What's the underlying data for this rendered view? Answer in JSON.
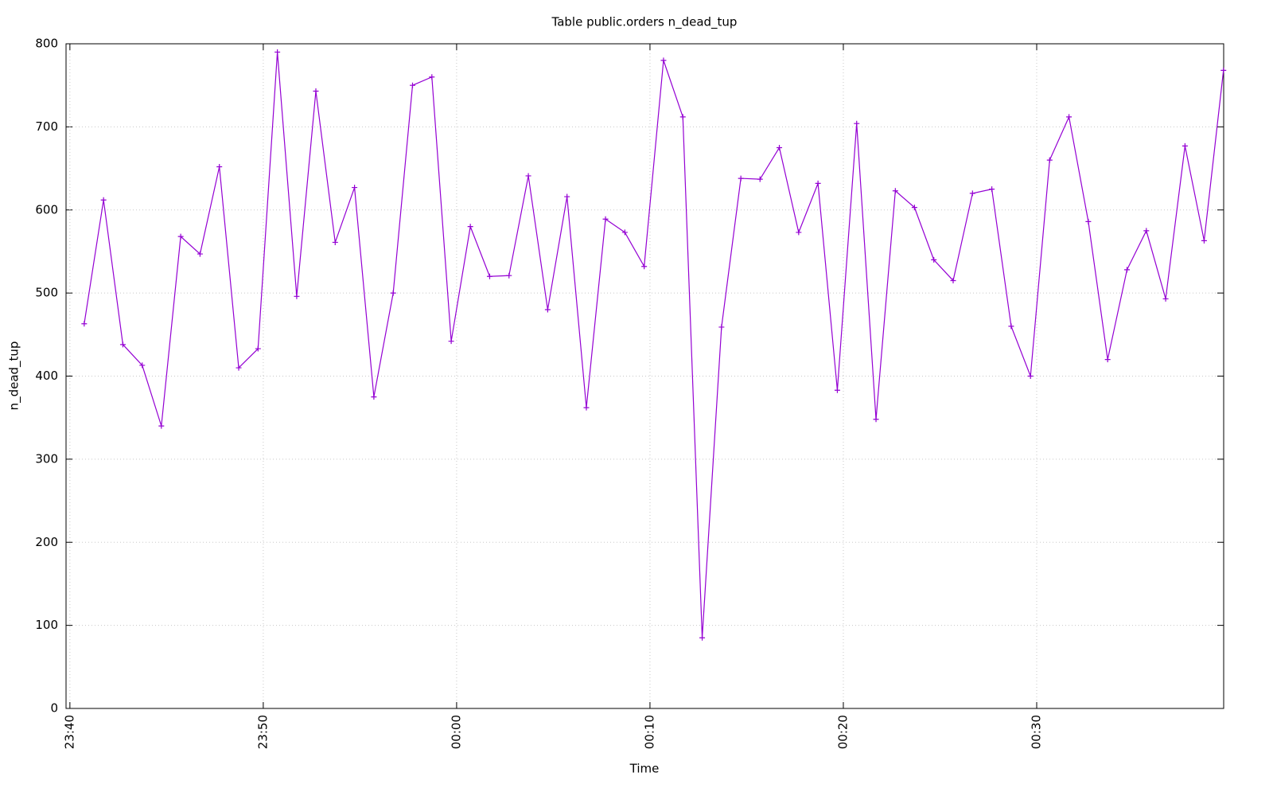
{
  "chart_data": {
    "type": "line",
    "title": "Table public.orders n_dead_tup",
    "x_label": "Time",
    "y_label": "n_dead_tup",
    "x": [
      0.74,
      1.74,
      2.74,
      3.74,
      4.73,
      5.73,
      6.73,
      7.73,
      8.73,
      9.73,
      10.73,
      11.73,
      12.72,
      13.72,
      14.72,
      15.72,
      16.72,
      17.72,
      18.72,
      19.72,
      20.71,
      21.71,
      22.71,
      23.71,
      24.71,
      25.71,
      26.71,
      27.7,
      28.7,
      29.7,
      30.7,
      31.7,
      32.7,
      33.7,
      34.7,
      35.69,
      36.69,
      37.69,
      38.69,
      39.69,
      40.69,
      41.69,
      42.69,
      43.68,
      44.68,
      45.68,
      46.68,
      47.68,
      48.68,
      49.68,
      50.67,
      51.67,
      52.67,
      53.67,
      54.67,
      55.67,
      56.67,
      57.67,
      58.66,
      59.66
    ],
    "series": [
      {
        "name": "n_dead_tup",
        "color": "#9400d3",
        "values": [
          463,
          612,
          438,
          413,
          340,
          568,
          547,
          652,
          410,
          433,
          790,
          496,
          743,
          561,
          627,
          375,
          500,
          750,
          760,
          442,
          580,
          520,
          521,
          641,
          480,
          616,
          362,
          589,
          573,
          532,
          780,
          712,
          85,
          459,
          638,
          637,
          675,
          573,
          632,
          383,
          704,
          348,
          623,
          603,
          540,
          515,
          620,
          625,
          460,
          400,
          660,
          712,
          586,
          420,
          528,
          575,
          493,
          677,
          563,
          768
        ]
      }
    ],
    "xlim": [
      -0.2,
      59.67
    ],
    "xticks": [
      {
        "value": 0,
        "label": "23:40"
      },
      {
        "value": 10,
        "label": "23:50"
      },
      {
        "value": 20,
        "label": "00:00"
      },
      {
        "value": 30,
        "label": "00:10"
      },
      {
        "value": 40,
        "label": "00:20"
      },
      {
        "value": 50,
        "label": "00:30"
      }
    ],
    "ylim": [
      0,
      800
    ],
    "yticks": [
      0,
      100,
      200,
      300,
      400,
      500,
      600,
      700,
      800
    ],
    "grid": true
  }
}
